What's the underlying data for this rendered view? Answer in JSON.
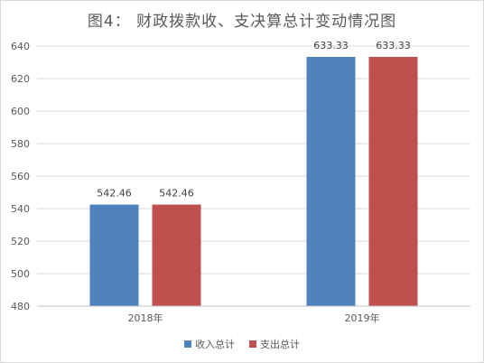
{
  "chart_data": {
    "type": "bar",
    "title": "图4：  财政拨款收、支决算总计变动情况图",
    "categories": [
      "2018年",
      "2019年"
    ],
    "series": [
      {
        "name": "收入总计",
        "values": [
          542.46,
          633.33
        ],
        "labels": [
          "542.46",
          "633.33"
        ],
        "color": "#4f81bd"
      },
      {
        "name": "支出总计",
        "values": [
          542.46,
          633.33
        ],
        "labels": [
          "542.46",
          "633.33"
        ],
        "color": "#c0504d"
      }
    ],
    "ylim": [
      480,
      640
    ],
    "yticks": [
      480,
      500,
      520,
      540,
      560,
      580,
      600,
      620,
      640
    ],
    "grid": true,
    "legend_position": "bottom"
  }
}
